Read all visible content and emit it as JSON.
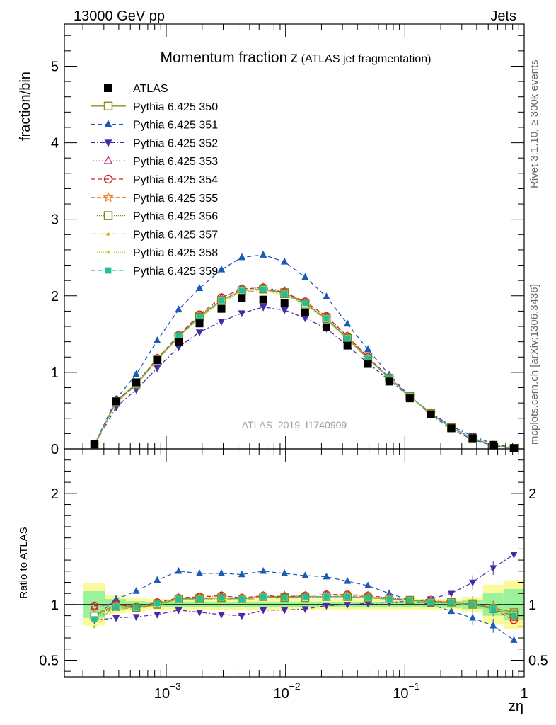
{
  "header": {
    "left": "13000 GeV pp",
    "right": "Jets"
  },
  "side_text": {
    "rivet": "Rivet 3.1.10, ≥ 300k events",
    "source": "mcplots.cern.ch [arXiv:1306.3436]"
  },
  "chart_data": {
    "type": "line",
    "title": "Momentum fraction",
    "title_var": "z",
    "title_sub": "(ATLAS jet fragmentation)",
    "watermark": "ATLAS_2019_I1740909",
    "xlabel": "zη",
    "ylabel": "fraction/bin",
    "ratio_ylabel": "Ratio to ATLAS",
    "x_scale": "log",
    "xlim": [
      0.00014,
      1.0
    ],
    "ylim": [
      0,
      5.55
    ],
    "ratio_ylim": [
      0.35,
      2.4
    ],
    "yticks": [
      "0",
      "1",
      "2",
      "3",
      "4",
      "5"
    ],
    "ratio_yticks": [
      "0.5",
      "1",
      "2"
    ],
    "ratio_yticks_right": [
      "0.5",
      "1",
      "2"
    ],
    "xticks": [
      "10",
      "10",
      "10",
      "1"
    ],
    "xtick_exponents": [
      "−3",
      "−2",
      "−1",
      ""
    ],
    "legend_placement": "top-left",
    "x": [
      0.00025,
      0.00038,
      0.00056,
      0.00084,
      0.00127,
      0.0019,
      0.0029,
      0.0043,
      0.0065,
      0.0098,
      0.0146,
      0.022,
      0.033,
      0.049,
      0.074,
      0.11,
      0.165,
      0.245,
      0.37,
      0.55,
      0.82
    ],
    "data": {
      "name": "ATLAS",
      "values": [
        0.06,
        0.62,
        0.87,
        1.16,
        1.4,
        1.64,
        1.83,
        1.97,
        1.95,
        1.91,
        1.78,
        1.59,
        1.35,
        1.11,
        0.88,
        0.66,
        0.45,
        0.27,
        0.14,
        0.05,
        0.01
      ]
    },
    "series": [
      {
        "name": "Pythia 6.425 350",
        "color": "#8e8e1e",
        "dash": "",
        "marker": "square-open",
        "ratio": [
          0.9,
          1.0,
          0.97,
          1.0,
          1.05,
          1.06,
          1.06,
          1.05,
          1.07,
          1.07,
          1.07,
          1.07,
          1.07,
          1.06,
          1.05,
          1.04,
          1.03,
          1.02,
          1.01,
          0.97,
          0.93
        ]
      },
      {
        "name": "Pythia 6.425 351",
        "color": "#1a5bb8",
        "dash": "6,4",
        "marker": "triangle-up",
        "ratio": [
          0.88,
          1.05,
          1.12,
          1.22,
          1.3,
          1.28,
          1.28,
          1.27,
          1.3,
          1.28,
          1.26,
          1.25,
          1.21,
          1.17,
          1.1,
          1.04,
          1.0,
          0.94,
          0.88,
          0.81,
          0.68
        ]
      },
      {
        "name": "Pythia 6.425 352",
        "color": "#4b2aa8",
        "dash": "6,3,2,3",
        "marker": "triangle-down",
        "ratio": [
          0.86,
          0.88,
          0.89,
          0.91,
          0.95,
          0.93,
          0.91,
          0.9,
          0.95,
          0.95,
          0.96,
          0.99,
          1.0,
          1.01,
          1.02,
          1.03,
          1.05,
          1.1,
          1.2,
          1.33,
          1.45
        ]
      },
      {
        "name": "Pythia 6.425 353",
        "color": "#c0306e",
        "dash": "1,3",
        "marker": "triangle-open",
        "ratio": [
          0.98,
          1.0,
          0.98,
          1.02,
          1.06,
          1.06,
          1.08,
          1.06,
          1.08,
          1.08,
          1.08,
          1.09,
          1.09,
          1.08,
          1.06,
          1.04,
          1.04,
          1.03,
          1.01,
          0.97,
          0.88
        ]
      },
      {
        "name": "Pythia 6.425 354",
        "color": "#d62020",
        "dash": "6,4",
        "marker": "circle-open",
        "ratio": [
          0.99,
          1.0,
          0.98,
          1.02,
          1.06,
          1.07,
          1.08,
          1.06,
          1.08,
          1.07,
          1.08,
          1.09,
          1.09,
          1.08,
          1.06,
          1.04,
          1.03,
          1.02,
          1.0,
          0.96,
          0.86
        ]
      },
      {
        "name": "Pythia 6.425 355",
        "color": "#ee7a1c",
        "dash": "6,3",
        "marker": "star-open",
        "ratio": [
          0.92,
          0.98,
          0.97,
          1.01,
          1.05,
          1.06,
          1.06,
          1.05,
          1.07,
          1.06,
          1.07,
          1.07,
          1.08,
          1.07,
          1.05,
          1.04,
          1.03,
          1.02,
          1.0,
          0.96,
          0.89
        ]
      },
      {
        "name": "Pythia 6.425 356",
        "color": "#7a8a16",
        "dash": "1,2",
        "marker": "square-open",
        "ratio": [
          0.9,
          0.98,
          0.97,
          1.0,
          1.05,
          1.05,
          1.06,
          1.05,
          1.07,
          1.06,
          1.06,
          1.07,
          1.07,
          1.06,
          1.05,
          1.04,
          1.02,
          1.02,
          1.0,
          0.96,
          0.91
        ]
      },
      {
        "name": "Pythia 6.425 357",
        "color": "#d8b21c",
        "dash": "8,3,1,3",
        "marker": "tri-small",
        "ratio": [
          0.85,
          0.97,
          0.96,
          1.0,
          1.04,
          1.05,
          1.05,
          1.04,
          1.06,
          1.06,
          1.06,
          1.06,
          1.06,
          1.06,
          1.05,
          1.03,
          1.02,
          1.01,
          0.99,
          0.96,
          0.92
        ]
      },
      {
        "name": "Pythia 6.425 358",
        "color": "#b6dc28",
        "dash": "1,2",
        "marker": "dot",
        "ratio": [
          0.8,
          0.96,
          0.96,
          0.99,
          1.04,
          1.04,
          1.05,
          1.04,
          1.06,
          1.05,
          1.06,
          1.06,
          1.06,
          1.06,
          1.05,
          1.03,
          1.02,
          1.01,
          0.99,
          0.96,
          0.92
        ]
      },
      {
        "name": "Pythia 6.425 359",
        "color": "#20c09a",
        "dash": "6,4",
        "marker": "square-filled",
        "ratio": [
          0.87,
          0.98,
          0.97,
          1.01,
          1.05,
          1.05,
          1.06,
          1.05,
          1.07,
          1.06,
          1.07,
          1.07,
          1.07,
          1.06,
          1.05,
          1.04,
          1.02,
          1.02,
          1.0,
          0.96,
          0.9
        ]
      }
    ],
    "bands": {
      "outer_color": "#fafa9a",
      "inner_color": "#9af29a",
      "outer": [
        0.19,
        0.08,
        0.06,
        0.05,
        0.05,
        0.05,
        0.05,
        0.05,
        0.05,
        0.05,
        0.05,
        0.05,
        0.05,
        0.05,
        0.05,
        0.05,
        0.05,
        0.05,
        0.07,
        0.18,
        0.22
      ],
      "inner": [
        0.12,
        0.05,
        0.03,
        0.025,
        0.025,
        0.025,
        0.025,
        0.025,
        0.025,
        0.025,
        0.025,
        0.025,
        0.025,
        0.025,
        0.025,
        0.025,
        0.025,
        0.03,
        0.04,
        0.1,
        0.14
      ]
    }
  }
}
